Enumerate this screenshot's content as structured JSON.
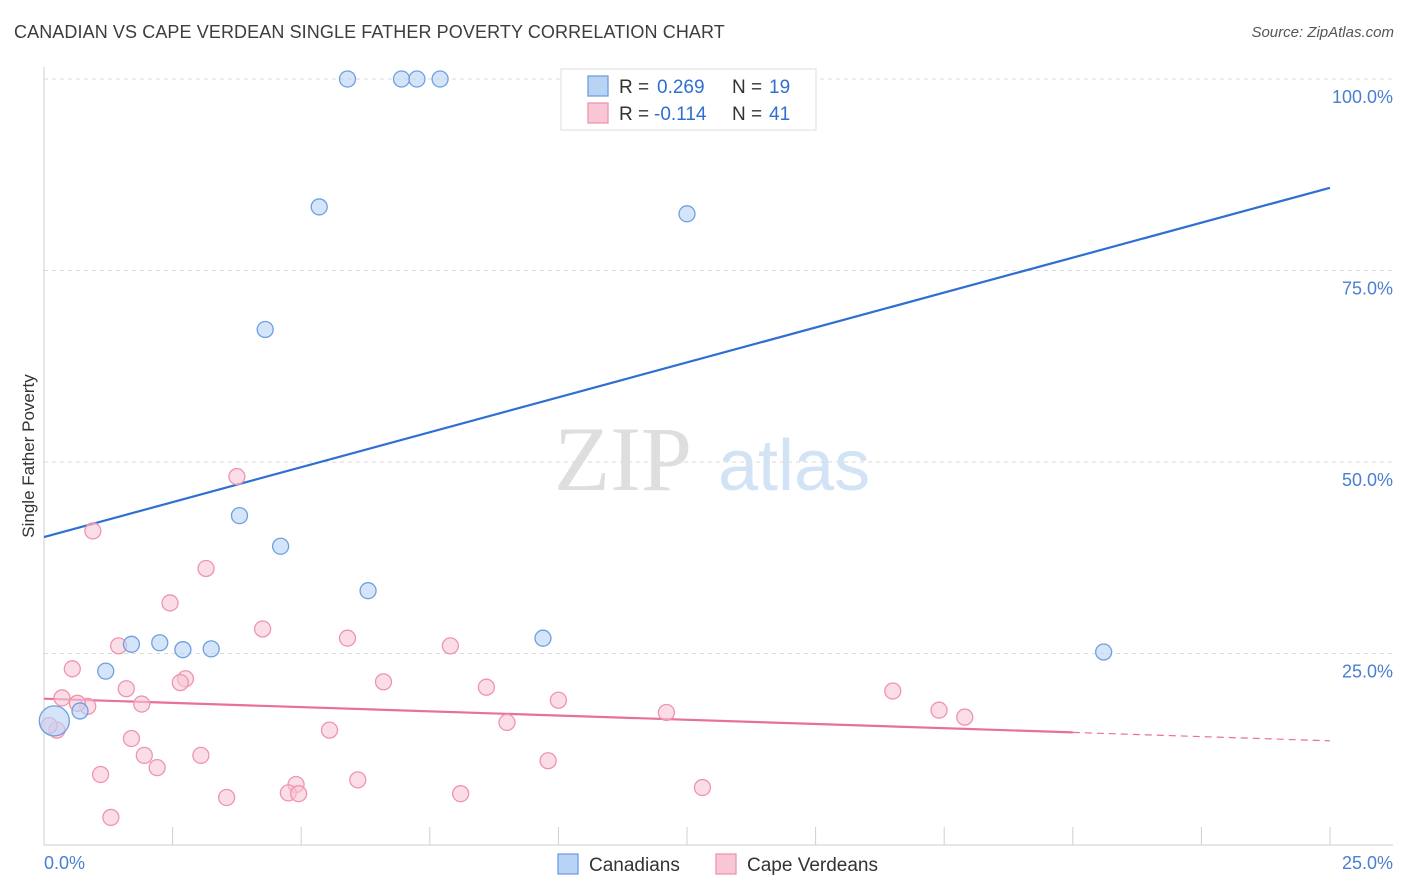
{
  "title": "CANADIAN VS CAPE VERDEAN SINGLE FATHER POVERTY CORRELATION CHART",
  "source": "Source: ZipAtlas.com",
  "watermark": {
    "zip": "ZIP",
    "atlas": "atlas"
  },
  "legend_top": [
    {
      "r_label": "R =",
      "r_value": "0.269",
      "n_label": "N =",
      "n_value": "19"
    },
    {
      "r_label": "R =",
      "r_value": "-0.114",
      "n_label": "N =",
      "n_value": "41"
    }
  ],
  "bottom_legend": [
    "Canadians",
    "Cape Verdeans"
  ],
  "colors": {
    "canadian_fill": "#b9d3f5",
    "canadian_stroke": "#6f9fe0",
    "canadian_line": "#2f6fd1",
    "cape_fill": "#f9c6d6",
    "cape_stroke": "#ee94b2",
    "cape_line": "#e8709a",
    "grid": "#d9d9d9",
    "axis_text": "#4a7fd0"
  },
  "chart_data": {
    "type": "scatter",
    "xlabel": "",
    "ylabel": "Single Father Poverty",
    "xlim": [
      0,
      25
    ],
    "ylim": [
      0,
      100
    ],
    "x_tick_labels": [
      "0.0%",
      "25.0%"
    ],
    "y_ticks": [
      25,
      50,
      75,
      100
    ],
    "y_tick_labels": [
      "25.0%",
      "50.0%",
      "75.0%",
      "100.0%"
    ],
    "grid": true,
    "legend_position": "top-center",
    "series": [
      {
        "name": "Canadians",
        "r": 0.269,
        "n": 19,
        "points": [
          {
            "x": 5.9,
            "y": 100
          },
          {
            "x": 6.95,
            "y": 100
          },
          {
            "x": 7.25,
            "y": 100
          },
          {
            "x": 7.7,
            "y": 100
          },
          {
            "x": 5.35,
            "y": 83.3
          },
          {
            "x": 12.5,
            "y": 82.4
          },
          {
            "x": 4.3,
            "y": 67.3
          },
          {
            "x": 3.8,
            "y": 43
          },
          {
            "x": 4.6,
            "y": 39
          },
          {
            "x": 6.3,
            "y": 33.2
          },
          {
            "x": 2.25,
            "y": 26.4
          },
          {
            "x": 1.7,
            "y": 26.2
          },
          {
            "x": 2.7,
            "y": 25.5
          },
          {
            "x": 3.25,
            "y": 25.6
          },
          {
            "x": 9.7,
            "y": 27
          },
          {
            "x": 20.6,
            "y": 25.2
          },
          {
            "x": 1.2,
            "y": 22.7
          },
          {
            "x": 0.7,
            "y": 17.5
          },
          {
            "x": 0.2,
            "y": 16.2,
            "large": true
          }
        ],
        "trend": {
          "x0": 0,
          "y0": 40.2,
          "x1": 25,
          "y1": 85.8
        }
      },
      {
        "name": "Cape Verdeans",
        "r": -0.114,
        "n": 41,
        "points": [
          {
            "x": 3.75,
            "y": 48.1
          },
          {
            "x": 0.95,
            "y": 41
          },
          {
            "x": 3.15,
            "y": 36.1
          },
          {
            "x": 2.45,
            "y": 31.6
          },
          {
            "x": 4.25,
            "y": 28.2
          },
          {
            "x": 5.9,
            "y": 27
          },
          {
            "x": 7.9,
            "y": 26
          },
          {
            "x": 1.45,
            "y": 26
          },
          {
            "x": 0.55,
            "y": 23
          },
          {
            "x": 2.75,
            "y": 21.7
          },
          {
            "x": 2.65,
            "y": 21.2
          },
          {
            "x": 6.6,
            "y": 21.3
          },
          {
            "x": 8.6,
            "y": 20.6
          },
          {
            "x": 1.6,
            "y": 20.4
          },
          {
            "x": 16.5,
            "y": 20.1
          },
          {
            "x": 0.35,
            "y": 19.2
          },
          {
            "x": 10,
            "y": 18.9
          },
          {
            "x": 1.9,
            "y": 18.4
          },
          {
            "x": 0.85,
            "y": 18.1
          },
          {
            "x": 0.65,
            "y": 18.5
          },
          {
            "x": 12.1,
            "y": 17.3
          },
          {
            "x": 17.4,
            "y": 17.6
          },
          {
            "x": 17.9,
            "y": 16.7
          },
          {
            "x": 9.0,
            "y": 16
          },
          {
            "x": 0.25,
            "y": 15
          },
          {
            "x": 5.55,
            "y": 15
          },
          {
            "x": 1.7,
            "y": 13.9
          },
          {
            "x": 1.95,
            "y": 11.7
          },
          {
            "x": 3.05,
            "y": 11.7
          },
          {
            "x": 9.8,
            "y": 11
          },
          {
            "x": 2.2,
            "y": 10.1
          },
          {
            "x": 1.1,
            "y": 9.2
          },
          {
            "x": 6.1,
            "y": 8.5
          },
          {
            "x": 4.9,
            "y": 7.9
          },
          {
            "x": 12.8,
            "y": 7.5
          },
          {
            "x": 4.75,
            "y": 6.8
          },
          {
            "x": 4.95,
            "y": 6.7
          },
          {
            "x": 8.1,
            "y": 6.7
          },
          {
            "x": 3.55,
            "y": 6.2
          },
          {
            "x": 1.3,
            "y": 3.6
          },
          {
            "x": 0.1,
            "y": 15.6
          }
        ],
        "trend": {
          "x0": 0,
          "y0": 19.1,
          "x1": 20,
          "y1": 14.7,
          "dash_to": {
            "x": 25,
            "y": 13.6
          }
        }
      }
    ]
  }
}
